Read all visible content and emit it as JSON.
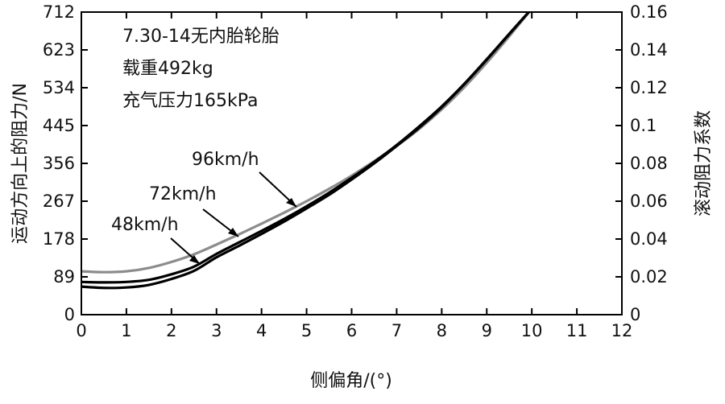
{
  "chart_data": {
    "type": "line",
    "xlabel": "侧偏角/(°)",
    "ylabel_left": "运动方向上的阻力/N",
    "ylabel_right": "滚动阻力系数",
    "xlim": [
      0,
      12
    ],
    "ylim_left": [
      0,
      712
    ],
    "ylim_right": [
      0,
      0.16
    ],
    "x_ticks": [
      "0",
      "1",
      "2",
      "3",
      "4",
      "5",
      "6",
      "7",
      "8",
      "9",
      "10",
      "11",
      "12"
    ],
    "y_left_ticks": [
      "0",
      "89",
      "178",
      "267",
      "356",
      "445",
      "534",
      "623",
      "712"
    ],
    "y_right_ticks": [
      "0",
      "0.02",
      "0.04",
      "0.06",
      "0.08",
      "0.1",
      "0.12",
      "0.14",
      "0.16"
    ],
    "info_lines": [
      "7.30-14无内胎轮胎",
      "载重492kg",
      "充气压力165kPa"
    ],
    "annotations": [
      {
        "text": "96km/h",
        "series": 2
      },
      {
        "text": "72km/h",
        "series": 1
      },
      {
        "text": "48km/h",
        "series": 0
      }
    ],
    "series": [
      {
        "name": "48km/h",
        "color": "#000000",
        "x": [
          0,
          0.5,
          1,
          1.5,
          2,
          2.5,
          3,
          3.5,
          4,
          4.5,
          5,
          5.5,
          6,
          6.5,
          7,
          7.5,
          8,
          8.5,
          9,
          9.5,
          10
        ],
        "y": [
          66,
          63,
          64,
          70,
          84,
          103,
          135,
          162,
          190,
          219,
          250,
          282,
          318,
          356,
          397,
          440,
          488,
          542,
          600,
          660,
          720
        ]
      },
      {
        "name": "72km/h",
        "color": "#000000",
        "x": [
          0,
          0.5,
          1,
          1.5,
          2,
          2.5,
          3,
          3.5,
          4,
          4.5,
          5,
          5.5,
          6,
          6.5,
          7,
          7.5,
          8,
          8.5,
          9,
          9.5,
          10
        ],
        "y": [
          77,
          76,
          77,
          82,
          95,
          113,
          143,
          170,
          197,
          225,
          255,
          287,
          322,
          359,
          399,
          443,
          490,
          543,
          601,
          661,
          720
        ]
      },
      {
        "name": "96km/h",
        "color": "#8c8c8c",
        "x": [
          0,
          0.5,
          1,
          1.5,
          2,
          2.5,
          3,
          3.5,
          4,
          4.5,
          5,
          5.5,
          6,
          6.5,
          7,
          7.5,
          8,
          8.5,
          9,
          9.5,
          10
        ],
        "y": [
          102,
          100,
          102,
          110,
          124,
          142,
          165,
          189,
          214,
          240,
          267,
          296,
          327,
          361,
          397,
          437,
          483,
          535,
          593,
          655,
          720
        ]
      }
    ]
  }
}
